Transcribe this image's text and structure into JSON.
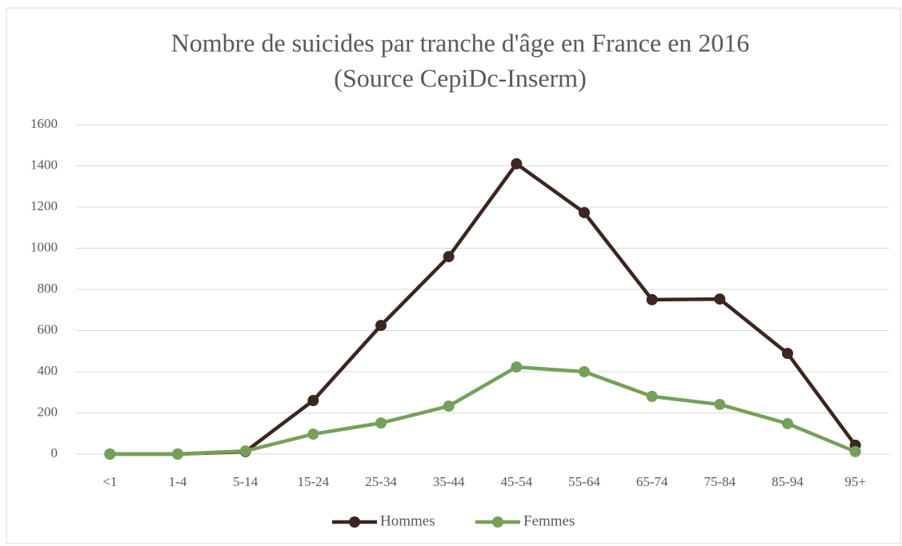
{
  "chart_data": {
    "type": "line",
    "title": "Nombre de suicides par tranche d'âge en France en 2016",
    "subtitle": "(Source CepiDc-Inserm)",
    "categories": [
      "<1",
      "1-4",
      "5-14",
      "15-24",
      "25-34",
      "35-44",
      "45-54",
      "55-64",
      "65-74",
      "75-84",
      "85-94",
      "95+"
    ],
    "series": [
      {
        "name": "Hommes",
        "color": "#3d2521",
        "values": [
          0,
          0,
          12,
          260,
          625,
          959,
          1410,
          1173,
          750,
          753,
          489,
          43
        ]
      },
      {
        "name": "Femmes",
        "color": "#76a05a",
        "values": [
          0,
          0,
          15,
          97,
          151,
          233,
          423,
          400,
          280,
          241,
          148,
          12
        ]
      }
    ],
    "ylim": [
      0,
      1600
    ],
    "yticks": [
      0,
      200,
      400,
      600,
      800,
      1000,
      1200,
      1400,
      1600
    ],
    "grid": true,
    "legend": "bottom"
  }
}
